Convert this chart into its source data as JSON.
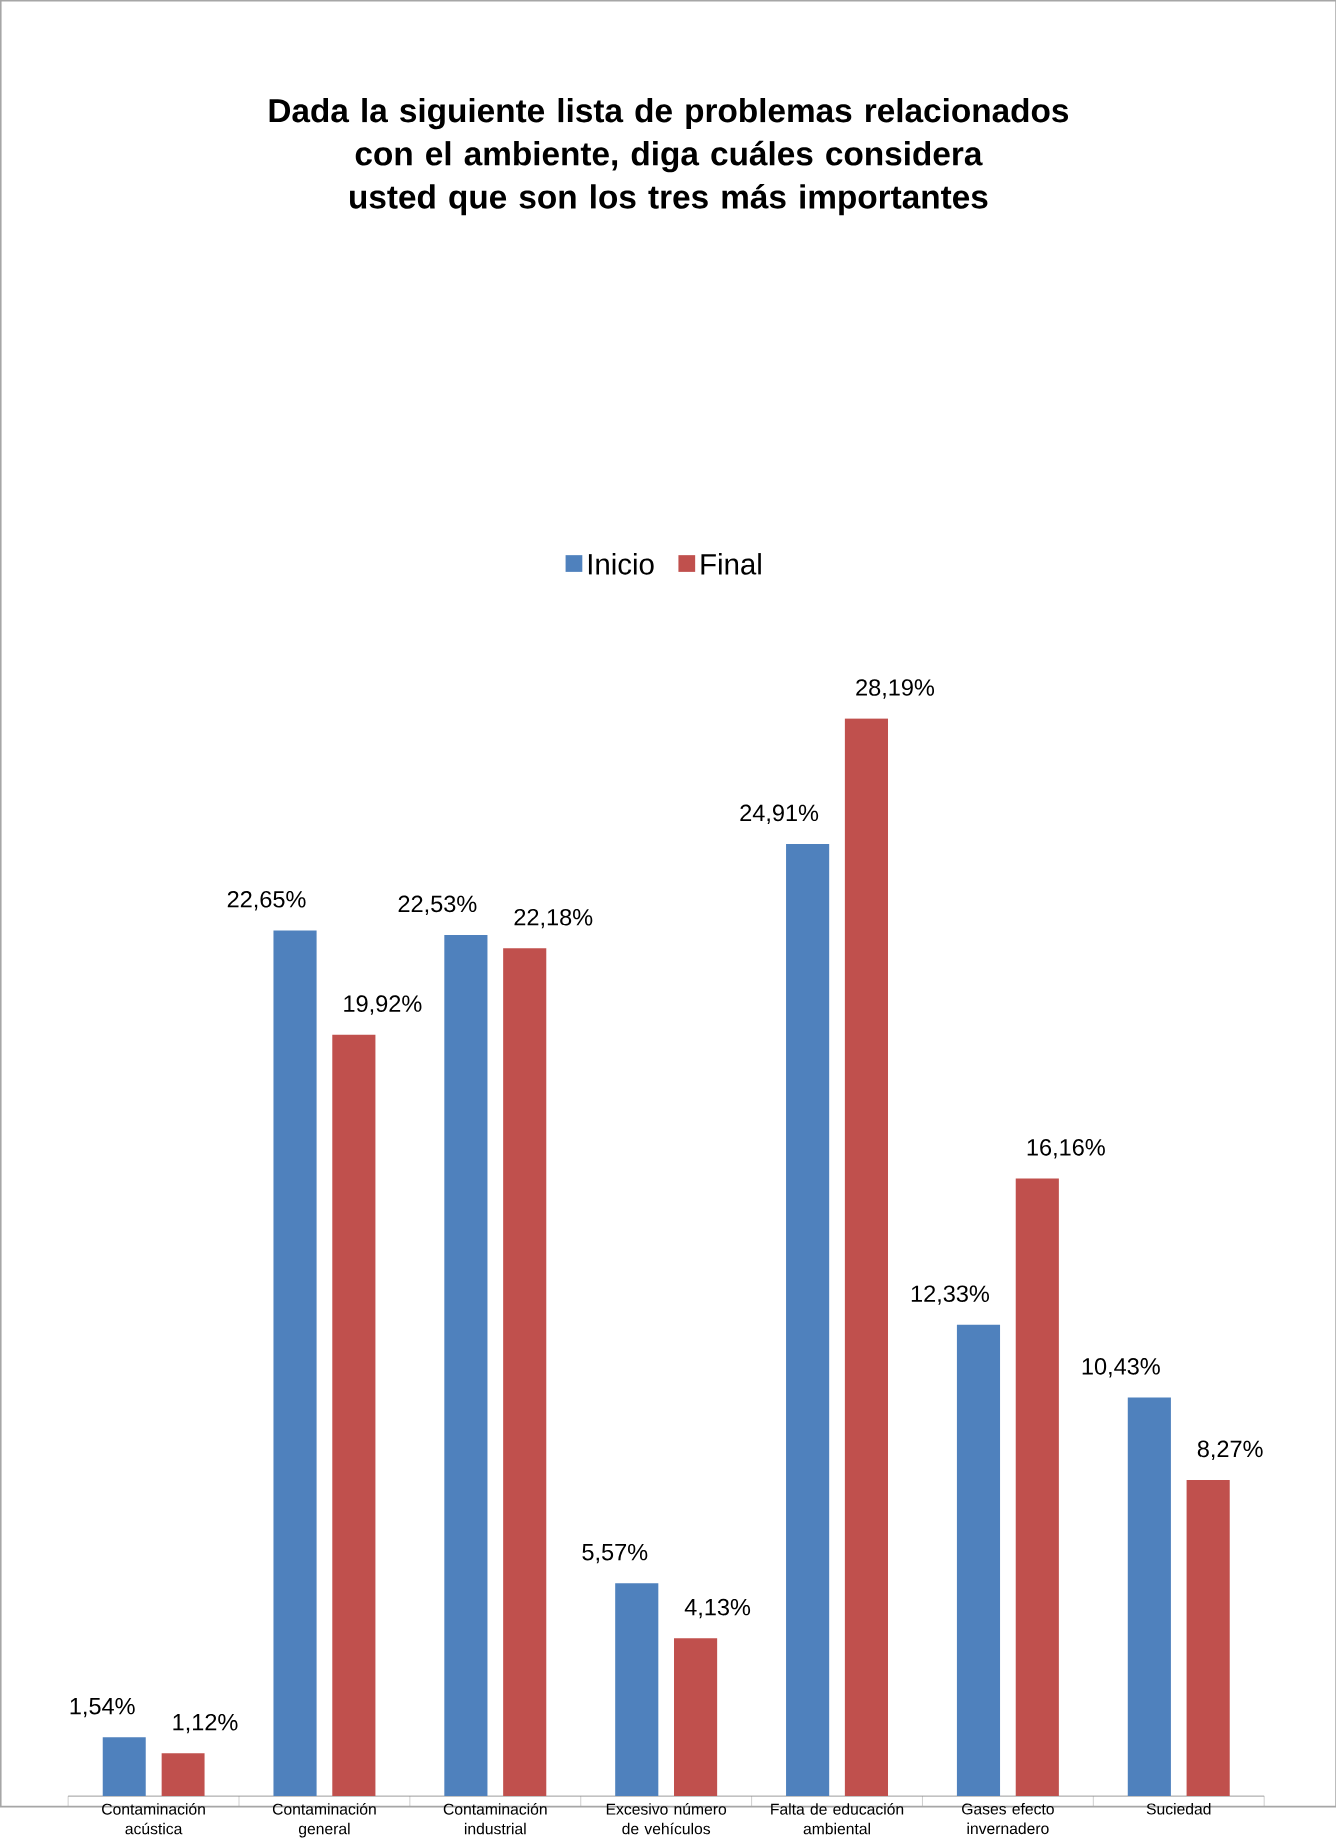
{
  "chart_data": {
    "type": "bar",
    "title": "Dada la siguiente lista de problemas relacionados con el ambiente, diga cuáles considera usted que son los tres más importantes",
    "categories": [
      "Contaminación acústica",
      "Contaminación general",
      "Contaminación industrial",
      "Excesivo número de vehículos",
      "Falta de educación ambiental",
      "Gases efecto invernadero",
      "Suciedad"
    ],
    "series": [
      {
        "name": "Inicio",
        "color": "#4f81bd",
        "values": [
          1.54,
          22.65,
          22.53,
          5.57,
          24.91,
          12.33,
          10.43
        ],
        "value_labels": [
          "1,54%",
          "22,65%",
          "22,53%",
          "5,57%",
          "24,91%",
          "12,33%",
          "10,43%"
        ]
      },
      {
        "name": "Final",
        "color": "#c0504d",
        "values": [
          1.12,
          19.92,
          22.18,
          4.13,
          28.19,
          16.16,
          8.27
        ],
        "value_labels": [
          "1,12%",
          "19,92%",
          "22,18%",
          "4,13%",
          "28,19%",
          "16,16%",
          "8,27%"
        ]
      }
    ],
    "legend": "top"
  }
}
